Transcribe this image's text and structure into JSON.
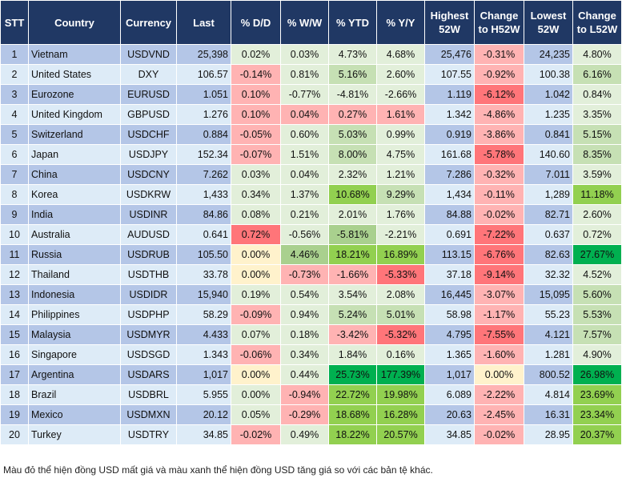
{
  "headers": [
    "STT",
    "Country",
    "Currency",
    "Last",
    "% D/D",
    "% W/W",
    "% YTD",
    "% Y/Y",
    "Highest 52W",
    "Change to H52W",
    "Lowest 52W",
    "Change to L52W"
  ],
  "colors": {
    "row_odd": "#b4c6e7",
    "row_even": "#ddebf7",
    "L": "#e2efda",
    "G": "#c6e0b4",
    "M": "#a9d08e",
    "B": "#92d050",
    "D": "#00b050",
    "r": "#ffb3b3",
    "R": "#ff7579",
    "Y": "#fff2cc",
    "header": "#203864"
  },
  "rows": [
    {
      "stt": "1",
      "country": "Vietnam",
      "currency": "USDVND",
      "last": "25,398",
      "dd": "0.02%",
      "ww": "0.03%",
      "ytd": "4.73%",
      "yy": "4.68%",
      "high": "25,476",
      "chg_h": "-0.31%",
      "low": "24,235",
      "chg_l": "4.80%",
      "c": "LLLLrL"
    },
    {
      "stt": "2",
      "country": "United States",
      "currency": "DXY",
      "last": "106.57",
      "dd": "-0.14%",
      "ww": "0.81%",
      "ytd": "5.16%",
      "yy": "2.60%",
      "high": "107.55",
      "chg_h": "-0.92%",
      "low": "100.38",
      "chg_l": "6.16%",
      "c": "rLGLrG"
    },
    {
      "stt": "3",
      "country": "Eurozone",
      "currency": "EURUSD",
      "last": "1.051",
      "dd": "0.10%",
      "ww": "-0.77%",
      "ytd": "-4.81%",
      "yy": "-2.66%",
      "high": "1.119",
      "chg_h": "-6.12%",
      "low": "1.042",
      "chg_l": "0.84%",
      "c": "rLLLRL"
    },
    {
      "stt": "4",
      "country": "United Kingdom",
      "currency": "GBPUSD",
      "last": "1.276",
      "dd": "0.10%",
      "ww": "0.04%",
      "ytd": "0.27%",
      "yy": "1.61%",
      "high": "1.342",
      "chg_h": "-4.86%",
      "low": "1.235",
      "chg_l": "3.35%",
      "c": "rrrrrL"
    },
    {
      "stt": "5",
      "country": "Switzerland",
      "currency": "USDCHF",
      "last": "0.884",
      "dd": "-0.05%",
      "ww": "0.60%",
      "ytd": "5.03%",
      "yy": "0.99%",
      "high": "0.919",
      "chg_h": "-3.86%",
      "low": "0.841",
      "chg_l": "5.15%",
      "c": "rLGLrG"
    },
    {
      "stt": "6",
      "country": "Japan",
      "currency": "USDJPY",
      "last": "152.34",
      "dd": "-0.07%",
      "ww": "1.51%",
      "ytd": "8.00%",
      "yy": "4.75%",
      "high": "161.68",
      "chg_h": "-5.78%",
      "low": "140.60",
      "chg_l": "8.35%",
      "c": "rLGLRG"
    },
    {
      "stt": "7",
      "country": "China",
      "currency": "USDCNY",
      "last": "7.262",
      "dd": "0.03%",
      "ww": "0.04%",
      "ytd": "2.32%",
      "yy": "1.21%",
      "high": "7.286",
      "chg_h": "-0.32%",
      "low": "7.011",
      "chg_l": "3.59%",
      "c": "LLLLrL"
    },
    {
      "stt": "8",
      "country": "Korea",
      "currency": "USDKRW",
      "last": "1,433",
      "dd": "0.34%",
      "ww": "1.37%",
      "ytd": "10.68%",
      "yy": "9.29%",
      "high": "1,434",
      "chg_h": "-0.11%",
      "low": "1,289",
      "chg_l": "11.18%",
      "c": "LLBGrB"
    },
    {
      "stt": "9",
      "country": "India",
      "currency": "USDINR",
      "last": "84.86",
      "dd": "0.08%",
      "ww": "0.21%",
      "ytd": "2.01%",
      "yy": "1.76%",
      "high": "84.88",
      "chg_h": "-0.02%",
      "low": "82.71",
      "chg_l": "2.60%",
      "c": "LLLLrL"
    },
    {
      "stt": "10",
      "country": "Australia",
      "currency": "AUDUSD",
      "last": "0.641",
      "dd": "0.72%",
      "ww": "-0.56%",
      "ytd": "-5.81%",
      "yy": "-2.21%",
      "high": "0.691",
      "chg_h": "-7.22%",
      "low": "0.637",
      "chg_l": "0.72%",
      "c": "RLMLRL"
    },
    {
      "stt": "11",
      "country": "Russia",
      "currency": "USDRUB",
      "last": "105.50",
      "dd": "0.00%",
      "ww": "4.46%",
      "ytd": "18.21%",
      "yy": "16.89%",
      "high": "113.15",
      "chg_h": "-6.76%",
      "low": "82.63",
      "chg_l": "27.67%",
      "c": "YMBBRD"
    },
    {
      "stt": "12",
      "country": "Thailand",
      "currency": "USDTHB",
      "last": "33.78",
      "dd": "0.00%",
      "ww": "-0.73%",
      "ytd": "-1.66%",
      "yy": "-5.33%",
      "high": "37.18",
      "chg_h": "-9.14%",
      "low": "32.32",
      "chg_l": "4.52%",
      "c": "YrrRRL"
    },
    {
      "stt": "13",
      "country": "Indonesia",
      "currency": "USDIDR",
      "last": "15,940",
      "dd": "0.19%",
      "ww": "0.54%",
      "ytd": "3.54%",
      "yy": "2.08%",
      "high": "16,445",
      "chg_h": "-3.07%",
      "low": "15,095",
      "chg_l": "5.60%",
      "c": "LLLLrG"
    },
    {
      "stt": "14",
      "country": "Philippines",
      "currency": "USDPHP",
      "last": "58.29",
      "dd": "-0.09%",
      "ww": "0.94%",
      "ytd": "5.24%",
      "yy": "5.01%",
      "high": "58.98",
      "chg_h": "-1.17%",
      "low": "55.23",
      "chg_l": "5.53%",
      "c": "rLGGrG"
    },
    {
      "stt": "15",
      "country": "Malaysia",
      "currency": "USDMYR",
      "last": "4.433",
      "dd": "0.07%",
      "ww": "0.18%",
      "ytd": "-3.42%",
      "yy": "-5.32%",
      "high": "4.795",
      "chg_h": "-7.55%",
      "low": "4.121",
      "chg_l": "7.57%",
      "c": "LLrRRG"
    },
    {
      "stt": "16",
      "country": "Singapore",
      "currency": "USDSGD",
      "last": "1.343",
      "dd": "-0.06%",
      "ww": "0.34%",
      "ytd": "1.84%",
      "yy": "0.16%",
      "high": "1.365",
      "chg_h": "-1.60%",
      "low": "1.281",
      "chg_l": "4.90%",
      "c": "rLLLrL"
    },
    {
      "stt": "17",
      "country": "Argentina",
      "currency": "USDARS",
      "last": "1,017",
      "dd": "0.00%",
      "ww": "0.44%",
      "ytd": "25.73%",
      "yy": "177.39%",
      "high": "1,017",
      "chg_h": "0.00%",
      "low": "800.52",
      "chg_l": "26.98%",
      "c": "YLDDYD"
    },
    {
      "stt": "18",
      "country": "Brazil",
      "currency": "USDBRL",
      "last": "5.955",
      "dd": "0.00%",
      "ww": "-0.94%",
      "ytd": "22.72%",
      "yy": "19.98%",
      "high": "6.089",
      "chg_h": "-2.22%",
      "low": "4.814",
      "chg_l": "23.69%",
      "c": "LrBBrB"
    },
    {
      "stt": "19",
      "country": "Mexico",
      "currency": "USDMXN",
      "last": "20.12",
      "dd": "0.05%",
      "ww": "-0.29%",
      "ytd": "18.68%",
      "yy": "16.28%",
      "high": "20.63",
      "chg_h": "-2.45%",
      "low": "16.31",
      "chg_l": "23.34%",
      "c": "LrBBrB"
    },
    {
      "stt": "20",
      "country": "Turkey",
      "currency": "USDTRY",
      "last": "34.85",
      "dd": "-0.02%",
      "ww": "0.49%",
      "ytd": "18.22%",
      "yy": "20.57%",
      "high": "34.85",
      "chg_h": "-0.02%",
      "low": "28.95",
      "chg_l": "20.37%",
      "c": "rLBBrB"
    }
  ],
  "footnote": "Màu đỏ thể hiện đồng USD mất giá và màu xanh thể hiện đồng USD tăng giá so với các bản tệ khác."
}
